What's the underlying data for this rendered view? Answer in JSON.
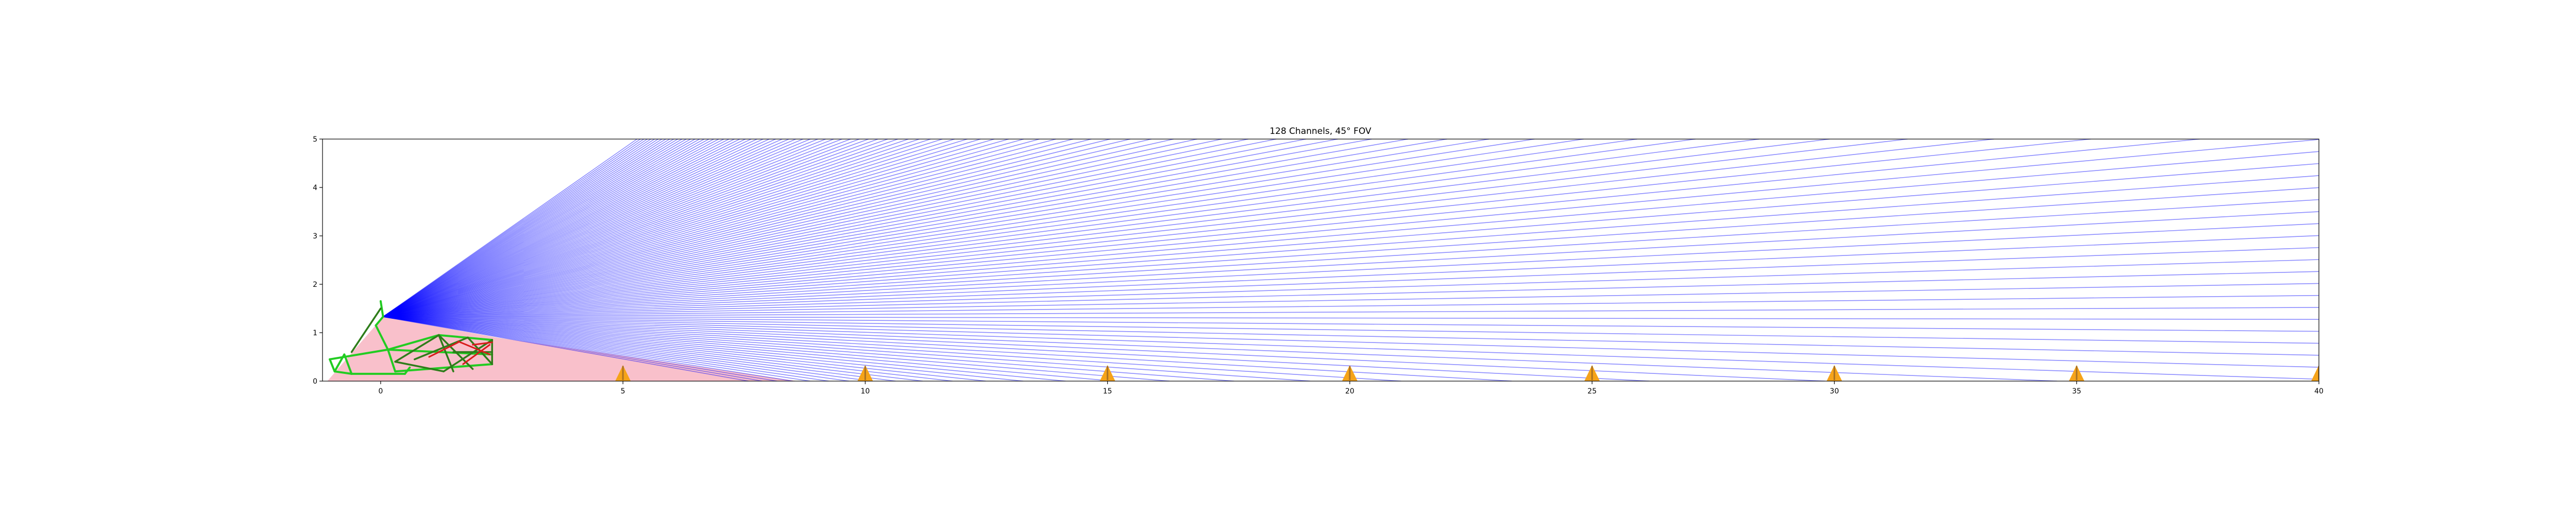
{
  "chart_data": {
    "type": "line",
    "title": "128 Channels, 45° FOV",
    "xlabel": "",
    "ylabel": "",
    "xlim": [
      -1.2,
      40
    ],
    "ylim": [
      0,
      5
    ],
    "x_ticks": [
      0,
      5,
      10,
      15,
      20,
      25,
      30,
      35,
      40
    ],
    "y_ticks": [
      0,
      1,
      2,
      3,
      4,
      5
    ],
    "grid": false,
    "legend": "none",
    "lidar": {
      "origin": [
        0.05,
        1.33
      ],
      "channels": 128,
      "fov_deg": 45,
      "lowest_angle_deg": -10.0,
      "highest_angle_deg": 35.0,
      "ray_color": "#0000ff",
      "ray_alpha": 0.45
    },
    "cones": {
      "x": [
        5,
        10,
        15,
        20,
        25,
        30,
        35,
        40
      ],
      "height": 0.33,
      "base_width": 0.32,
      "color": "#f5a31a",
      "stripe_color": "#6b4a2b"
    },
    "blind_zone": {
      "color": "#f9c0cb",
      "points": [
        [
          0.05,
          1.33
        ],
        [
          2.4,
          0.9
        ],
        [
          8.6,
          0.0
        ],
        [
          -1.1,
          0.0
        ]
      ]
    },
    "vehicle": {
      "colors": {
        "frame": "#22cc22",
        "structure": "#2e7d1a",
        "accent": "#d81b1b",
        "detail": "#8b6b00"
      },
      "frame_segments": [
        [
          [
            -1.05,
            0.45
          ],
          [
            -0.95,
            0.2
          ]
        ],
        [
          [
            -0.95,
            0.2
          ],
          [
            -0.6,
            0.15
          ]
        ],
        [
          [
            -0.6,
            0.15
          ],
          [
            0.5,
            0.15
          ]
        ],
        [
          [
            0.5,
            0.15
          ],
          [
            0.6,
            0.28
          ]
        ],
        [
          [
            -1.05,
            0.45
          ],
          [
            0.15,
            0.65
          ]
        ],
        [
          [
            -0.95,
            0.2
          ],
          [
            -0.75,
            0.55
          ]
        ],
        [
          [
            -0.75,
            0.55
          ],
          [
            -0.6,
            0.15
          ]
        ],
        [
          [
            0.0,
            1.65
          ],
          [
            0.05,
            1.33
          ]
        ],
        [
          [
            0.05,
            1.33
          ],
          [
            -0.1,
            1.15
          ]
        ],
        [
          [
            -0.1,
            1.15
          ],
          [
            0.15,
            0.65
          ]
        ],
        [
          [
            0.15,
            0.65
          ],
          [
            0.3,
            0.2
          ]
        ],
        [
          [
            0.15,
            0.65
          ],
          [
            1.2,
            0.95
          ]
        ],
        [
          [
            1.2,
            0.95
          ],
          [
            2.3,
            0.85
          ]
        ],
        [
          [
            0.3,
            0.2
          ],
          [
            2.3,
            0.35
          ]
        ],
        [
          [
            0.15,
            0.65
          ],
          [
            2.3,
            0.55
          ]
        ]
      ],
      "structure_segments": [
        [
          [
            0.0,
            1.5
          ],
          [
            -0.6,
            0.6
          ]
        ],
        [
          [
            0.3,
            0.4
          ],
          [
            1.2,
            0.95
          ]
        ],
        [
          [
            0.3,
            0.4
          ],
          [
            1.3,
            0.2
          ]
        ],
        [
          [
            1.2,
            0.95
          ],
          [
            1.5,
            0.2
          ]
        ],
        [
          [
            1.2,
            0.95
          ],
          [
            1.9,
            0.25
          ]
        ],
        [
          [
            1.3,
            0.2
          ],
          [
            2.3,
            0.85
          ]
        ],
        [
          [
            0.7,
            0.45
          ],
          [
            1.8,
            0.9
          ]
        ],
        [
          [
            1.8,
            0.9
          ],
          [
            2.3,
            0.35
          ]
        ],
        [
          [
            1.5,
            0.6
          ],
          [
            2.3,
            0.6
          ]
        ],
        [
          [
            2.3,
            0.85
          ],
          [
            2.3,
            0.35
          ]
        ]
      ],
      "accent_segments": [
        [
          [
            1.6,
            0.82
          ],
          [
            2.25,
            0.55
          ]
        ],
        [
          [
            1.7,
            0.35
          ],
          [
            2.25,
            0.75
          ]
        ],
        [
          [
            1.0,
            0.5
          ],
          [
            1.6,
            0.8
          ]
        ],
        [
          [
            1.9,
            0.75
          ],
          [
            2.3,
            0.8
          ]
        ]
      ]
    }
  }
}
